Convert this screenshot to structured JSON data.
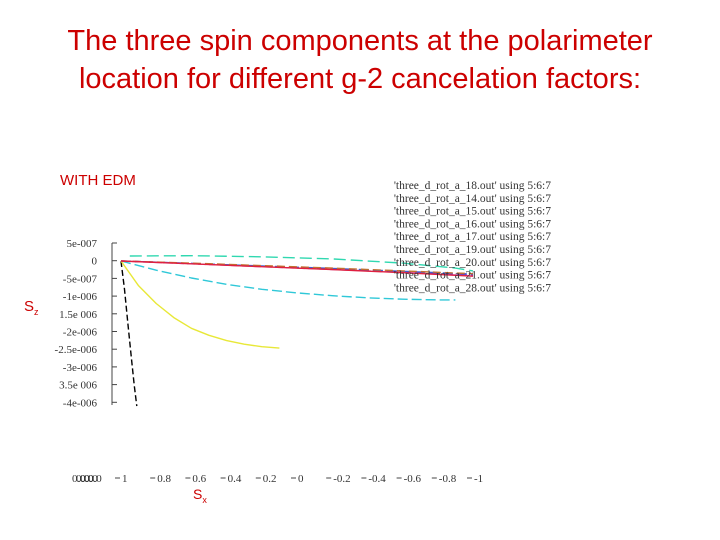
{
  "slide": {
    "title_line1": "The three spin components at the polarimeter",
    "title_line2": "location for different g-2 cancelation factors:",
    "note": "WITH EDM",
    "ylabel_main": "S",
    "ylabel_sub": "z",
    "xlabel_main": "S",
    "xlabel_sub": "x"
  },
  "chart_data": {
    "type": "line",
    "title": "",
    "xlabel": "Sx",
    "ylabel": "Sz",
    "x_ticks": [
      "1",
      "0.8",
      "0.6",
      "0.4",
      "0.2",
      "0",
      "-0.2",
      "-0.4",
      "-0.6",
      "-0.8",
      "-1"
    ],
    "y_ticks": [
      "5e-007",
      "0",
      "-5e-007",
      "-1e-006",
      "1.5e 006",
      "-2e-006",
      "-2.5e-006",
      "-3e-006",
      "3.5e 006",
      "-4e-006"
    ],
    "xlim": [
      1,
      -1
    ],
    "ylim": [
      -4e-06,
      5e-07
    ],
    "legend_position": "top-right",
    "series": [
      {
        "name": "'three_d_rot_a_18.out' using 5:6:7",
        "color": "#000000",
        "dash": "6,3",
        "x": [
          1,
          0.98,
          0.96,
          0.94,
          0.925,
          0.91
        ],
        "y": [
          0,
          -8e-07,
          -1.8e-06,
          -2.8e-06,
          -3.5e-06,
          -4.1e-06
        ]
      },
      {
        "name": "'three_d_rot_a_14.out' using 5:6:7",
        "color": "#e8e838",
        "dash": "none",
        "x": [
          1,
          0.9,
          0.8,
          0.7,
          0.6,
          0.5,
          0.4,
          0.3,
          0.2,
          0.1
        ],
        "y": [
          0,
          -7e-07,
          -1.2e-06,
          -1.6e-06,
          -1.9e-06,
          -2.1e-06,
          -2.25e-06,
          -2.35e-06,
          -2.42e-06,
          -2.46e-06
        ]
      },
      {
        "name": "'three_d_rot_a_15.out' using 5:6:7",
        "color": "#30c8d8",
        "dash": "10,4",
        "x": [
          1,
          0.8,
          0.6,
          0.4,
          0.2,
          0,
          -0.2,
          -0.4,
          -0.6,
          -0.8,
          -0.9
        ],
        "y": [
          0,
          -2.6e-07,
          -4.8e-07,
          -6.6e-07,
          -8e-07,
          -9e-07,
          -9.8e-07,
          -1.04e-06,
          -1.08e-06,
          -1.1e-06,
          -1.1e-06
        ]
      },
      {
        "name": "'three_d_rot_a_16.out' using 5:6:7",
        "color": "#d060c8",
        "dash": "8,3",
        "x": [
          1,
          0.6,
          0.2,
          -0.2,
          -0.6,
          -1
        ],
        "y": [
          0,
          -8e-08,
          -1.6e-07,
          -2.4e-07,
          -3.2e-07,
          -4.2e-07
        ]
      },
      {
        "name": "'three_d_rot_a_17.out' using 5:6:7",
        "color": "#8030c0",
        "dash": "10,4",
        "x": [
          1,
          0.6,
          0.2,
          -0.2,
          -0.6,
          -1
        ],
        "y": [
          0,
          -7e-08,
          -1.5e-07,
          -2.2e-07,
          -3e-07,
          -3.9e-07
        ]
      },
      {
        "name": "'three_d_rot_a_19.out' using 5:6:7",
        "color": "#30d8b0",
        "dash": "12,5",
        "x": [
          0.95,
          0.6,
          0.2,
          -0.2,
          -0.6,
          -0.9,
          -1
        ],
        "y": [
          1.4e-07,
          1.5e-07,
          1.2e-07,
          6e-08,
          -6e-08,
          -2e-07,
          -2.8e-07
        ]
      },
      {
        "name": "'three_d_rot_a_20.out' using 5:6:7",
        "color": "#4060d0",
        "dash": "10,4",
        "x": [
          1,
          0.6,
          0.2,
          -0.2,
          -0.6,
          -1
        ],
        "y": [
          0,
          -7e-08,
          -1.4e-07,
          -2.1e-07,
          -2.9e-07,
          -3.7e-07
        ]
      },
      {
        "name": "'three_d_rot_a_21.out' using 5:6:7",
        "color": "#c07030",
        "dash": "8,4",
        "x": [
          1,
          0.6,
          0.2,
          -0.2,
          -0.6,
          -1
        ],
        "y": [
          0,
          -6e-08,
          -1.3e-07,
          -2e-07,
          -2.8e-07,
          -3.6e-07
        ]
      },
      {
        "name": "'three_d_rot_a_28.out' using 5:6:7",
        "color": "#e02040",
        "dash": "none",
        "x": [
          1,
          0.6,
          0.2,
          -0.2,
          -0.6,
          -1
        ],
        "y": [
          0,
          -8e-08,
          -1.6e-07,
          -2.4e-07,
          -3.3e-07,
          -4.3e-07
        ]
      }
    ]
  }
}
